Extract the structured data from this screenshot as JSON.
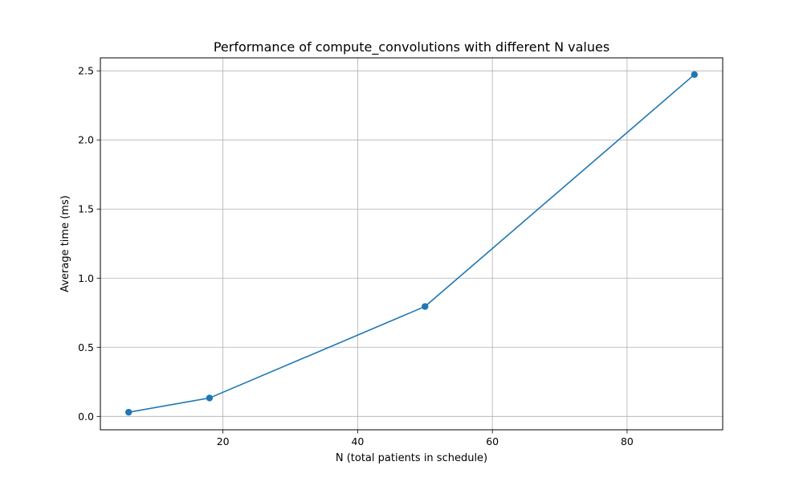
{
  "chart_data": {
    "type": "line",
    "title": "Performance of compute_convolutions with different N values",
    "xlabel": "N (total patients in schedule)",
    "ylabel": "Average time (ms)",
    "xlim": [
      1.8,
      94.2
    ],
    "ylim": [
      -0.097,
      2.594
    ],
    "xticks": [
      20,
      40,
      60,
      80
    ],
    "yticks": [
      0.0,
      0.5,
      1.0,
      1.5,
      2.0,
      2.5
    ],
    "xtick_labels": [
      "20",
      "40",
      "60",
      "80"
    ],
    "ytick_labels": [
      "0.0",
      "0.5",
      "1.0",
      "1.5",
      "2.0",
      "2.5"
    ],
    "grid": true,
    "legend": "none",
    "series": [
      {
        "color": "#1f77b4",
        "marker": "circle",
        "x": [
          6,
          18,
          50,
          90
        ],
        "y": [
          0.03,
          0.133,
          0.795,
          2.473
        ]
      }
    ]
  }
}
